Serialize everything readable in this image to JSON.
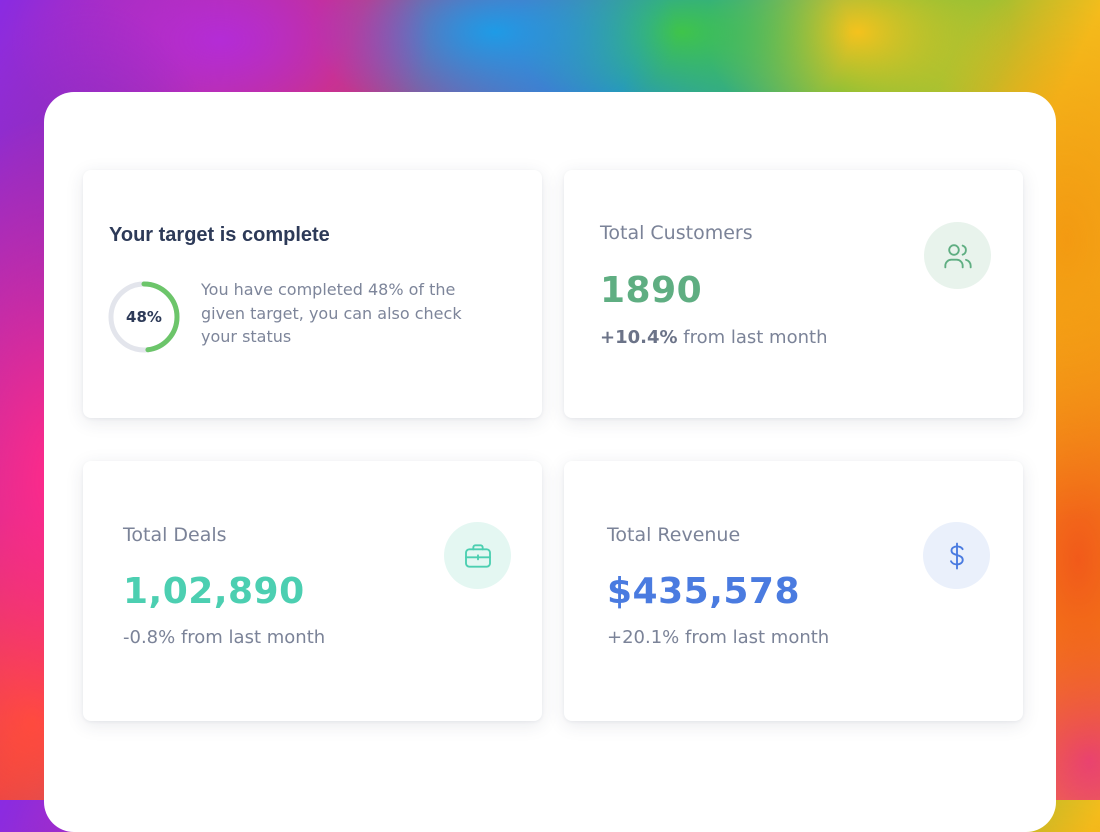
{
  "target": {
    "title": "Your target is complete",
    "percent_label": "48%",
    "percent": 48,
    "description": "You have completed 48% of the given target, you can also check your status",
    "ring_color": "#6cc56a",
    "ring_track_color": "#e3e5ec"
  },
  "customers": {
    "label": "Total Customers",
    "value": "1890",
    "change": "+10.4%",
    "change_suffix": " from last month",
    "icon": "users-icon",
    "color": "#5fae82"
  },
  "deals": {
    "label": "Total Deals",
    "value": "1,02,890",
    "change_text": "-0.8% from last month",
    "icon": "briefcase-icon",
    "color": "#4ccfb1"
  },
  "revenue": {
    "label": "Total Revenue",
    "value": "$435,578",
    "change_text": "+20.1% from last month",
    "icon": "dollar-icon",
    "color": "#4a7be0"
  }
}
